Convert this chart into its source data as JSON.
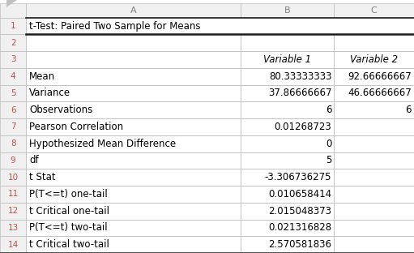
{
  "title_row": "t-Test: Paired Two Sample for Means",
  "col_letters": [
    "A",
    "B",
    "C"
  ],
  "rows": [
    [
      "Mean",
      "80.33333333",
      "92.66666667"
    ],
    [
      "Variance",
      "37.86666667",
      "46.66666667"
    ],
    [
      "Observations",
      "6",
      "6"
    ],
    [
      "Pearson Correlation",
      "0.01268723",
      ""
    ],
    [
      "Hypothesized Mean Difference",
      "0",
      ""
    ],
    [
      "df",
      "5",
      ""
    ],
    [
      "t Stat",
      "-3.306736275",
      ""
    ],
    [
      "P(T<=t) one-tail",
      "0.010658414",
      ""
    ],
    [
      "t Critical one-tail",
      "2.015048373",
      ""
    ],
    [
      "P(T<=t) two-tail",
      "0.021316828",
      ""
    ],
    [
      "t Critical two-tail",
      "2.570581836",
      ""
    ]
  ],
  "bg_color": "#ffffff",
  "header_bg": "#f0f0f0",
  "grid_color": "#c0c0c0",
  "bold_line_color": "#1a1a1a",
  "text_color": "#000000",
  "row_num_color": "#c0504d",
  "col_letter_color": "#808080"
}
